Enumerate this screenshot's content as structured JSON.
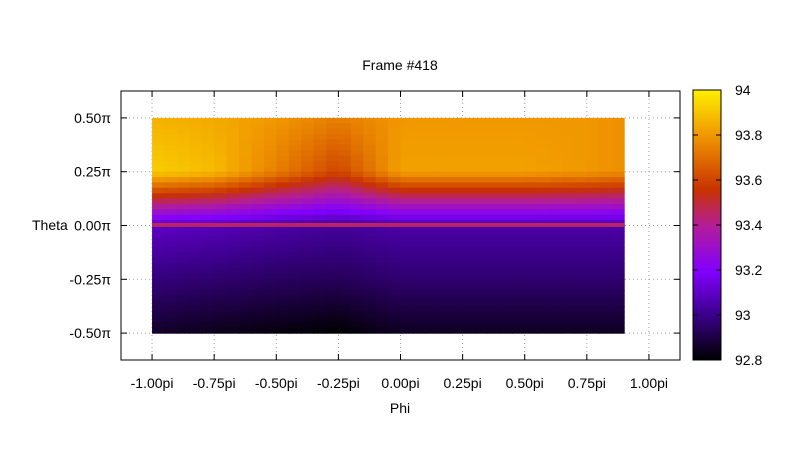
{
  "chart_data": {
    "type": "heatmap",
    "title": "Frame #418",
    "xlabel": "Phi",
    "ylabel": "Theta",
    "xlim": [
      -1.125,
      1.125
    ],
    "ylim": [
      -0.625,
      0.625
    ],
    "x_ticks": [
      {
        "value": -1.0,
        "label": "-1.00pi"
      },
      {
        "value": -0.75,
        "label": "-0.75pi"
      },
      {
        "value": -0.5,
        "label": "-0.50pi"
      },
      {
        "value": -0.25,
        "label": "-0.25pi"
      },
      {
        "value": 0.0,
        "label": "0.00pi"
      },
      {
        "value": 0.25,
        "label": "0.25pi"
      },
      {
        "value": 0.5,
        "label": "0.50pi"
      },
      {
        "value": 0.75,
        "label": "0.75pi"
      },
      {
        "value": 1.0,
        "label": "1.00pi"
      }
    ],
    "y_ticks": [
      {
        "value": 0.5,
        "label": "0.50π"
      },
      {
        "value": 0.25,
        "label": "0.25π"
      },
      {
        "value": 0.0,
        "label": "0.00π"
      },
      {
        "value": -0.25,
        "label": "-0.25π"
      },
      {
        "value": -0.5,
        "label": "-0.50π"
      }
    ],
    "colorbar": {
      "range": [
        92.8,
        94.0
      ],
      "ticks": [
        {
          "value": 94.0,
          "label": "94"
        },
        {
          "value": 93.8,
          "label": "93.8"
        },
        {
          "value": 93.6,
          "label": "93.6"
        },
        {
          "value": 93.4,
          "label": "93.4"
        },
        {
          "value": 93.2,
          "label": "93.2"
        },
        {
          "value": 93.0,
          "label": "93"
        },
        {
          "value": 92.8,
          "label": "92.8"
        }
      ],
      "palette": "black-blue-violet-red-orange-yellow"
    },
    "data_extent": {
      "x": [
        -1.0,
        0.9
      ],
      "y": [
        -0.5,
        0.5
      ]
    },
    "grid": true,
    "legend": "right",
    "z_samples": {
      "x": [
        -1.0,
        -0.75,
        -0.5,
        -0.25,
        0.0,
        0.25,
        0.5,
        0.75,
        0.9
      ],
      "y": [
        0.5,
        0.25,
        0.0,
        -0.25,
        -0.5
      ],
      "z": [
        [
          93.86,
          93.84,
          93.8,
          93.74,
          93.8,
          93.8,
          93.8,
          93.8,
          93.78
        ],
        [
          93.92,
          93.88,
          93.74,
          93.6,
          93.82,
          93.82,
          93.82,
          93.8,
          93.78
        ],
        [
          93.1,
          93.08,
          93.05,
          93.03,
          93.05,
          93.05,
          93.05,
          93.05,
          93.05
        ],
        [
          92.98,
          92.96,
          92.94,
          92.93,
          92.96,
          92.96,
          92.96,
          92.96,
          92.96
        ],
        [
          92.86,
          92.84,
          92.82,
          92.8,
          92.85,
          92.85,
          92.85,
          92.85,
          92.85
        ]
      ]
    }
  }
}
